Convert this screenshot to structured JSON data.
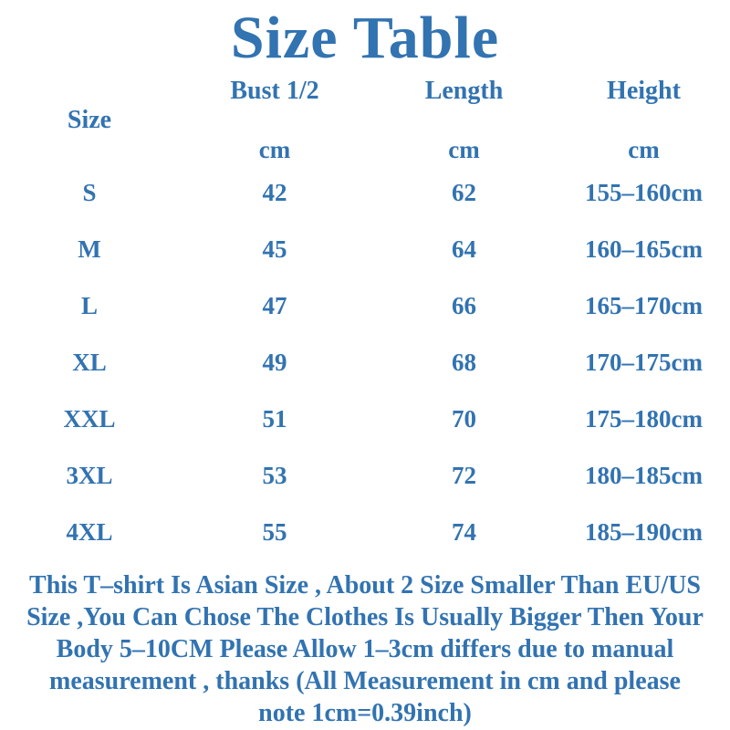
{
  "title": "Size Table",
  "colors": {
    "accent": "#3273b1",
    "background": "#ffffff"
  },
  "table": {
    "corner_header": "Size",
    "column_headers": [
      "Bust 1/2",
      "Length",
      "Height"
    ],
    "unit_row": [
      "cm",
      "cm",
      "cm"
    ],
    "rows": [
      {
        "size": "S",
        "bust": "42",
        "length": "62",
        "height": "155–160cm"
      },
      {
        "size": "M",
        "bust": "45",
        "length": "64",
        "height": "160–165cm"
      },
      {
        "size": "L",
        "bust": "47",
        "length": "66",
        "height": "165–170cm"
      },
      {
        "size": "XL",
        "bust": "49",
        "length": "68",
        "height": "170–175cm"
      },
      {
        "size": "XXL",
        "bust": "51",
        "length": "70",
        "height": "175–180cm"
      },
      {
        "size": "3XL",
        "bust": "53",
        "length": "72",
        "height": "180–185cm"
      },
      {
        "size": "4XL",
        "bust": "55",
        "length": "74",
        "height": "185–190cm"
      }
    ]
  },
  "footer": {
    "lines": [
      "This T–shirt Is Asian Size , About 2 Size Smaller Than EU/US",
      "Size ,You Can Chose The Clothes Is Usually Bigger Then Your",
      "Body 5–10CM Please Allow 1–3cm differs due to manual",
      "measurement , thanks (All Measurement in cm and please",
      "note 1cm=0.39inch)"
    ]
  }
}
